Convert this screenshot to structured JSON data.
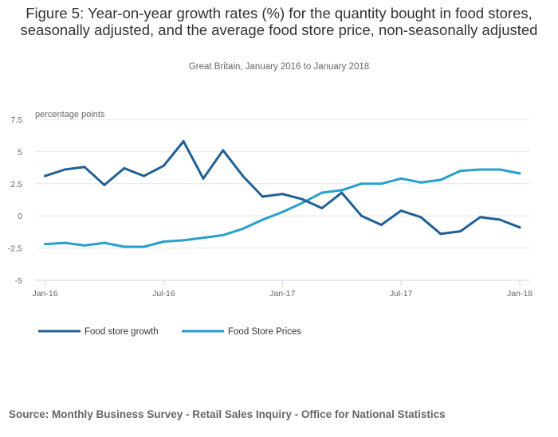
{
  "chart_data": {
    "type": "line",
    "title": "Figure 5: Year-on-year growth rates (%) for the quantity bought in food stores, seasonally adjusted, and the average food store price, non-seasonally adjusted",
    "subtitle": "Great Britain, January 2016 to January 2018",
    "xlabel": "",
    "ylabel": "percentage points",
    "ylim": [
      -5,
      7.5
    ],
    "yticks": [
      -5,
      -2.5,
      0,
      2.5,
      5,
      7.5
    ],
    "ytick_labels": [
      "-5",
      "-2.5",
      "0",
      "2.5",
      "5",
      "7.5"
    ],
    "x": [
      "Jan-16",
      "Feb-16",
      "Mar-16",
      "Apr-16",
      "May-16",
      "Jun-16",
      "Jul-16",
      "Aug-16",
      "Sep-16",
      "Oct-16",
      "Nov-16",
      "Dec-16",
      "Jan-17",
      "Feb-17",
      "Mar-17",
      "Apr-17",
      "May-17",
      "Jun-17",
      "Jul-17",
      "Aug-17",
      "Sep-17",
      "Oct-17",
      "Nov-17",
      "Dec-17",
      "Jan-18"
    ],
    "xtick_labels": [
      {
        "index": 0,
        "label": "Jan-16"
      },
      {
        "index": 6,
        "label": "Jul-16"
      },
      {
        "index": 12,
        "label": "Jan-17"
      },
      {
        "index": 18,
        "label": "Jul-17"
      },
      {
        "index": 24,
        "label": "Jan-18"
      }
    ],
    "grid": true,
    "legend_position": "bottom-left",
    "series": [
      {
        "name": "Food store growth",
        "color": "#206095",
        "values": [
          3.1,
          3.6,
          3.8,
          2.4,
          3.7,
          3.1,
          3.9,
          5.8,
          2.9,
          5.1,
          3.1,
          1.5,
          1.7,
          1.3,
          0.6,
          1.8,
          0.0,
          -0.7,
          0.4,
          -0.1,
          -1.4,
          -1.2,
          -0.1,
          -0.3,
          -0.9
        ]
      },
      {
        "name": "Food Store Prices",
        "color": "#27a0cc",
        "values": [
          -2.2,
          -2.1,
          -2.3,
          -2.1,
          -2.4,
          -2.4,
          -2.0,
          -1.9,
          -1.7,
          -1.5,
          -1.0,
          -0.3,
          0.3,
          1.0,
          1.8,
          2.0,
          2.5,
          2.5,
          2.9,
          2.6,
          2.8,
          3.5,
          3.6,
          3.6,
          3.3
        ]
      }
    ]
  },
  "source": "Source: Monthly Business Survey - Retail Sales Inquiry - Office for National Statistics",
  "colors": {
    "grid": "#e6e6e6",
    "axis": "#ccd6eb"
  }
}
